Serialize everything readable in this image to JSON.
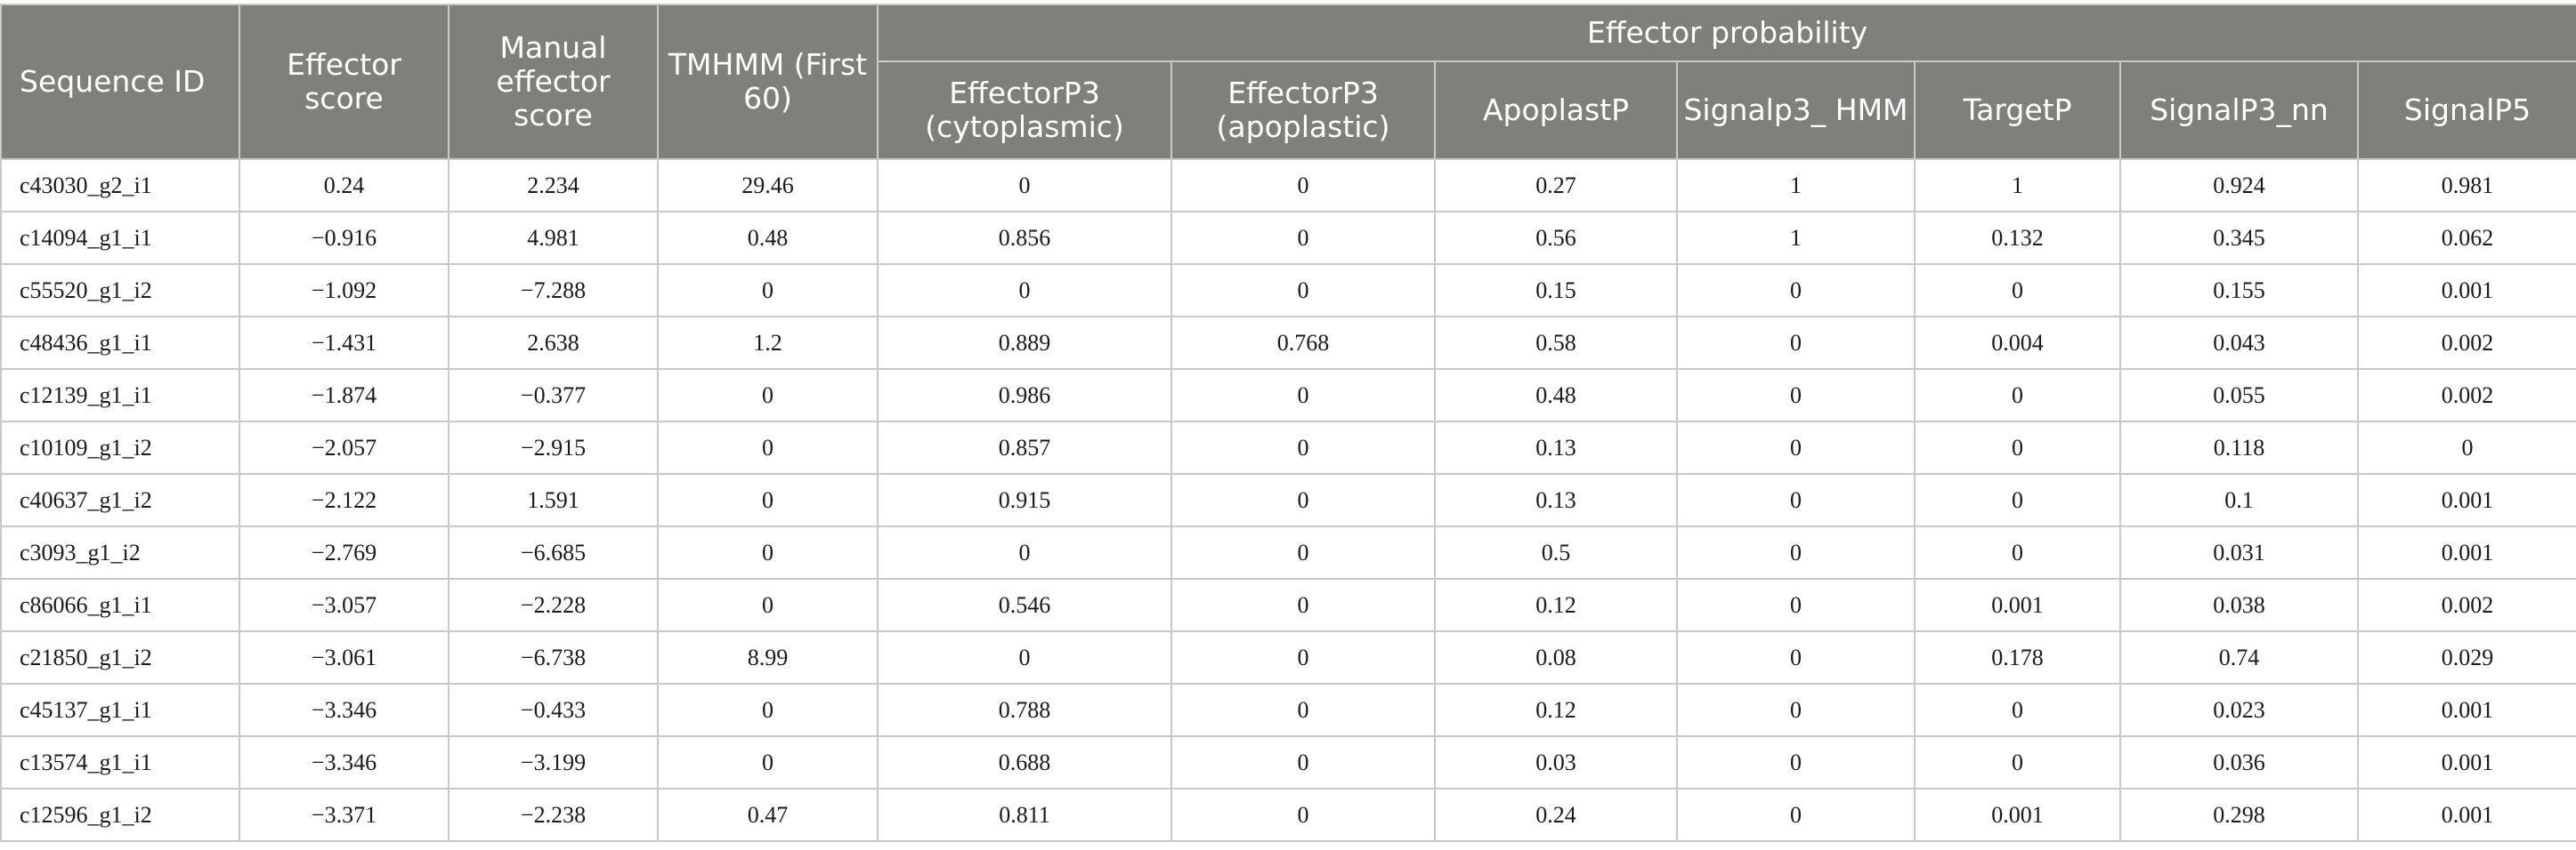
{
  "table": {
    "group_header": "Effector probability",
    "columns": [
      "Sequence ID",
      "Effector score",
      "Manual effector score",
      "TMHMM (First 60)",
      "EffectorP3 (cytoplasmic)",
      "EffectorP3 (apoplastic)",
      "ApoplastP",
      "Signalp3_ HMM",
      "TargetP",
      "SignalP3_nn",
      "SignalP5"
    ],
    "rows": [
      [
        "c43030_g2_i1",
        "0.24",
        "2.234",
        "29.46",
        "0",
        "0",
        "0.27",
        "1",
        "1",
        "0.924",
        "0.981"
      ],
      [
        "c14094_g1_i1",
        "−0.916",
        "4.981",
        "0.48",
        "0.856",
        "0",
        "0.56",
        "1",
        "0.132",
        "0.345",
        "0.062"
      ],
      [
        "c55520_g1_i2",
        "−1.092",
        "−7.288",
        "0",
        "0",
        "0",
        "0.15",
        "0",
        "0",
        "0.155",
        "0.001"
      ],
      [
        "c48436_g1_i1",
        "−1.431",
        "2.638",
        "1.2",
        "0.889",
        "0.768",
        "0.58",
        "0",
        "0.004",
        "0.043",
        "0.002"
      ],
      [
        "c12139_g1_i1",
        "−1.874",
        "−0.377",
        "0",
        "0.986",
        "0",
        "0.48",
        "0",
        "0",
        "0.055",
        "0.002"
      ],
      [
        "c10109_g1_i2",
        "−2.057",
        "−2.915",
        "0",
        "0.857",
        "0",
        "0.13",
        "0",
        "0",
        "0.118",
        "0"
      ],
      [
        "c40637_g1_i2",
        "−2.122",
        "1.591",
        "0",
        "0.915",
        "0",
        "0.13",
        "0",
        "0",
        "0.1",
        "0.001"
      ],
      [
        "c3093_g1_i2",
        "−2.769",
        "−6.685",
        "0",
        "0",
        "0",
        "0.5",
        "0",
        "0",
        "0.031",
        "0.001"
      ],
      [
        "c86066_g1_i1",
        "−3.057",
        "−2.228",
        "0",
        "0.546",
        "0",
        "0.12",
        "0",
        "0.001",
        "0.038",
        "0.002"
      ],
      [
        "c21850_g1_i2",
        "−3.061",
        "−6.738",
        "8.99",
        "0",
        "0",
        "0.08",
        "0",
        "0.178",
        "0.74",
        "0.029"
      ],
      [
        "c45137_g1_i1",
        "−3.346",
        "−0.433",
        "0",
        "0.788",
        "0",
        "0.12",
        "0",
        "0",
        "0.023",
        "0.001"
      ],
      [
        "c13574_g1_i1",
        "−3.346",
        "−3.199",
        "0",
        "0.688",
        "0",
        "0.03",
        "0",
        "0",
        "0.036",
        "0.001"
      ],
      [
        "c12596_g1_i2",
        "−3.371",
        "−2.238",
        "0.47",
        "0.811",
        "0",
        "0.24",
        "0",
        "0.001",
        "0.298",
        "0.001"
      ]
    ]
  }
}
